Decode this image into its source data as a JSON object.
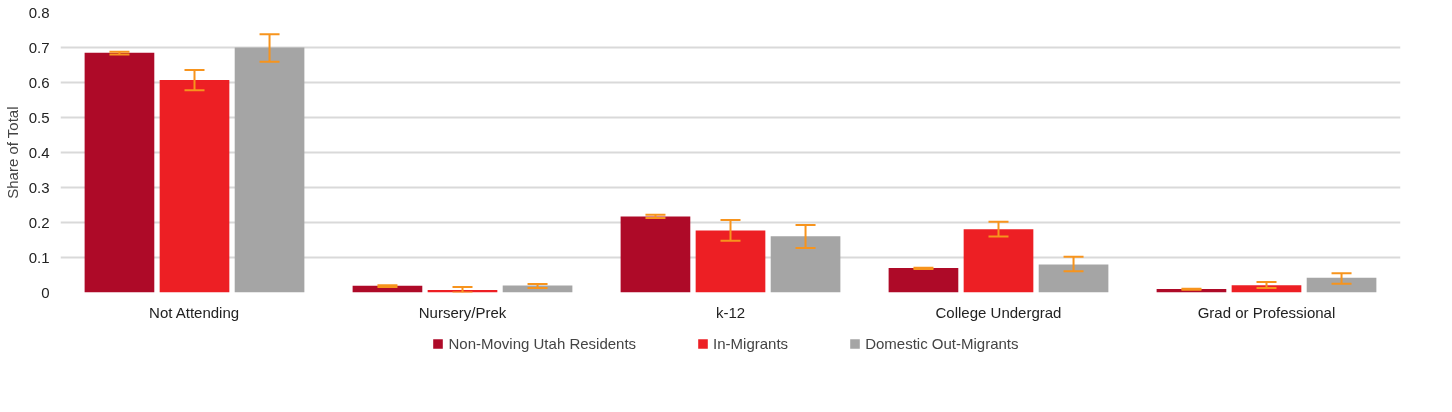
{
  "chart_data": {
    "type": "bar",
    "ylabel": "Share of Total",
    "categories": [
      "Not Attending",
      "Nursery/Prek",
      "k-12",
      "College Undergrad",
      "Grad or Professional"
    ],
    "series": [
      {
        "name": "Non-Moving Utah Residents",
        "color": "#ae0a28",
        "values": [
          0.685,
          0.019,
          0.217,
          0.07,
          0.01
        ],
        "errors": [
          [
            0.68,
            0.688
          ],
          [
            0.016,
            0.021
          ],
          [
            0.213,
            0.222
          ],
          [
            0.067,
            0.071
          ],
          [
            0.008,
            0.011
          ]
        ]
      },
      {
        "name": "In-Migrants",
        "color": "#ed1f24",
        "values": [
          0.607,
          0.007,
          0.177,
          0.181,
          0.021
        ],
        "errors": [
          [
            0.578,
            0.636
          ],
          [
            0.0,
            0.016
          ],
          [
            0.148,
            0.207
          ],
          [
            0.16,
            0.202
          ],
          [
            0.013,
            0.03
          ]
        ]
      },
      {
        "name": "Domestic Out-Migrants",
        "color": "#a5a5a5",
        "values": [
          0.7,
          0.02,
          0.161,
          0.08,
          0.042
        ],
        "errors": [
          [
            0.659,
            0.738
          ],
          [
            0.013,
            0.024
          ],
          [
            0.127,
            0.193
          ],
          [
            0.061,
            0.102
          ],
          [
            0.025,
            0.055
          ]
        ]
      }
    ],
    "ylim": [
      0,
      0.8
    ],
    "yticks": [
      0,
      0.1,
      0.2,
      0.3,
      0.4,
      0.5,
      0.6,
      0.7,
      0.8
    ],
    "grid": "y",
    "legend": "bottom"
  }
}
